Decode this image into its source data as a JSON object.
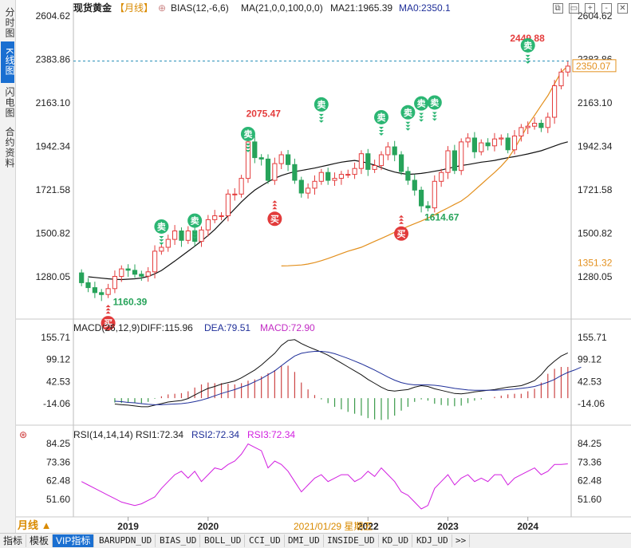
{
  "side_tabs": [
    "分时图",
    "K线图",
    "闪电图",
    "合约资料"
  ],
  "side_active": 1,
  "header": {
    "symbol": "现货黄金",
    "period": "【月线】",
    "bias": "BIAS(12,-6,6)",
    "ma": "MA(21,0,0,100,0,0)",
    "ma21": "MA21:1965.39",
    "ma0": "MA0:2350.1"
  },
  "top_icons": [
    "⧉",
    "▭",
    "+",
    "-",
    "✕"
  ],
  "colors": {
    "up": "#e43c3c",
    "down": "#27a35a",
    "ma21": "#111111",
    "ma0": "#e3901e",
    "macd_dea": "#1f2f99",
    "macd_label": "#c22cc4",
    "rsi": "#d21fe0",
    "accent": "#1a6fd1"
  },
  "main_axis": {
    "ticks": [
      "2604.62",
      "2383.86",
      "2163.10",
      "1942.34",
      "1721.58",
      "1500.82",
      "1280.05"
    ],
    "tick_values": [
      2604.62,
      2383.86,
      2163.1,
      1942.34,
      1721.58,
      1500.82,
      1280.05
    ],
    "current_price": "2350.07",
    "ma0_price": "1351.32"
  },
  "annotations": {
    "high1": "2075.47",
    "high2": "2449.88",
    "low1": "1160.39",
    "low2": "1614.67"
  },
  "signals": {
    "sell": "卖",
    "buy": "买"
  },
  "macd": {
    "label": "MACD(26,12,9)",
    "diff": "DIFF:115.96",
    "dea": "DEA:79.51",
    "macd": "MACD:72.90",
    "ticks": [
      "155.71",
      "99.12",
      "42.53",
      "-14.06"
    ],
    "tick_values": [
      155.71,
      99.12,
      42.53,
      -14.06
    ]
  },
  "rsi": {
    "label": "RSI(14,14,14)",
    "rsi1": "RSI1:72.34",
    "rsi2": "RSI2:72.34",
    "rsi3": "RSI3:72.34",
    "ticks": [
      "84.25",
      "73.36",
      "62.48",
      "51.60"
    ],
    "tick_values": [
      84.25,
      73.36,
      62.48,
      51.6
    ]
  },
  "xaxis": {
    "years": [
      "2019",
      "2020",
      "2022",
      "2023",
      "2024"
    ],
    "cursor_date": "2021/01/29 星期五",
    "period_button": "月线 ▲"
  },
  "bottom_tabs": [
    "指标",
    "模板",
    "VIP指标",
    "BARUPDN_UD",
    "BIAS_UD",
    "BOLL_UD",
    "CCI_UD",
    "DMI_UD",
    "INSIDE_UD",
    "KD_UD",
    "KDJ_UD",
    ">>"
  ],
  "bottom_active": 2,
  "chart_data": {
    "type": "candlestick",
    "start_month": "2018-06",
    "closes": [
      1250,
      1225,
      1200,
      1190,
      1220,
      1282,
      1320,
      1313,
      1293,
      1283,
      1305,
      1410,
      1430,
      1470,
      1513,
      1465,
      1513,
      1460,
      1518,
      1570,
      1590,
      1590,
      1700,
      1700,
      1780,
      1965,
      1885,
      1878,
      1770,
      1855,
      1900,
      1850,
      1770,
      1705,
      1730,
      1765,
      1810,
      1770,
      1780,
      1800,
      1800,
      1830,
      1905,
      1825,
      1845,
      1900,
      1940,
      1900,
      1815,
      1770,
      1720,
      1640,
      1630,
      1765,
      1810,
      1920,
      1820,
      1965,
      1985,
      1915,
      1960,
      1945,
      1980,
      1985,
      1925,
      1995,
      2038,
      2045,
      2060,
      2038,
      2090,
      2250,
      2320,
      2350
    ],
    "ma21": [
      1280,
      1277,
      1273,
      1270,
      1267,
      1266,
      1268,
      1270,
      1274,
      1282,
      1295,
      1312,
      1336,
      1360,
      1385,
      1410,
      1435,
      1462,
      1490,
      1520,
      1555,
      1590,
      1625,
      1660,
      1692,
      1720,
      1742,
      1762,
      1780,
      1794,
      1805,
      1814,
      1820,
      1826,
      1832,
      1840,
      1847,
      1855,
      1862,
      1867,
      1871,
      1865,
      1857,
      1847,
      1834,
      1822,
      1812,
      1805,
      1800,
      1802,
      1805,
      1810,
      1816,
      1822,
      1830,
      1838,
      1845,
      1850,
      1856,
      1862,
      1866,
      1871,
      1878,
      1885,
      1890,
      1897,
      1904,
      1912,
      1920,
      1932,
      1944,
      1956,
      1965.39
    ],
    "ma0": [
      1335,
      1336,
      1338,
      1340,
      1345,
      1352,
      1362,
      1373,
      1385,
      1398,
      1410,
      1420,
      1430,
      1445,
      1460,
      1475,
      1490,
      1506,
      1521,
      1536,
      1550,
      1563,
      1578,
      1595,
      1613,
      1630,
      1648,
      1665,
      1690,
      1720,
      1750,
      1780,
      1810,
      1842,
      1880,
      1930,
      1990,
      2050,
      2100,
      2150,
      2200,
      2260,
      2320,
      2350.1
    ],
    "macd_diff": [
      -15,
      -17,
      -18,
      -20,
      -22,
      -22,
      -18,
      -14,
      -10,
      -8,
      -6,
      -1,
      8,
      17,
      25,
      30,
      36,
      40,
      44,
      52,
      62,
      72,
      85,
      100,
      115,
      135,
      148,
      150,
      140,
      132,
      125,
      118,
      110,
      100,
      90,
      80,
      70,
      60,
      48,
      38,
      28,
      20,
      18,
      20,
      22,
      28,
      32,
      30,
      24,
      20,
      16,
      12,
      11,
      13,
      16,
      18,
      20,
      22,
      25,
      28,
      30,
      32,
      38,
      45,
      60,
      80,
      95,
      108,
      115.96
    ],
    "macd_dea": [
      -8,
      -9,
      -11,
      -12,
      -14,
      -16,
      -17,
      -17,
      -16,
      -15,
      -14,
      -12,
      -9,
      -5,
      0,
      6,
      12,
      17,
      22,
      28,
      34,
      42,
      50,
      60,
      70,
      83,
      96,
      108,
      115,
      118,
      120,
      120,
      118,
      114,
      108,
      102,
      95,
      88,
      80,
      72,
      63,
      54,
      46,
      40,
      36,
      34,
      34,
      34,
      33,
      31,
      28,
      25,
      23,
      21,
      20,
      20,
      20,
      20,
      21,
      22,
      23,
      25,
      27,
      30,
      35,
      41,
      48,
      58,
      66,
      72,
      79.51
    ],
    "rsi": [
      62,
      60,
      58,
      56,
      54,
      52,
      50,
      49,
      48,
      49,
      51,
      53,
      58,
      62,
      66,
      68,
      64,
      68,
      62,
      66,
      70,
      69,
      72,
      74,
      78,
      84,
      82,
      80,
      70,
      74,
      72,
      68,
      62,
      56,
      60,
      64,
      66,
      62,
      64,
      66,
      66,
      62,
      64,
      68,
      65,
      70,
      66,
      62,
      56,
      54,
      50,
      46,
      48,
      58,
      62,
      66,
      60,
      64,
      66,
      62,
      64,
      62,
      66,
      66,
      60,
      64,
      66,
      68,
      70,
      66,
      68,
      72,
      72,
      72.34
    ]
  }
}
